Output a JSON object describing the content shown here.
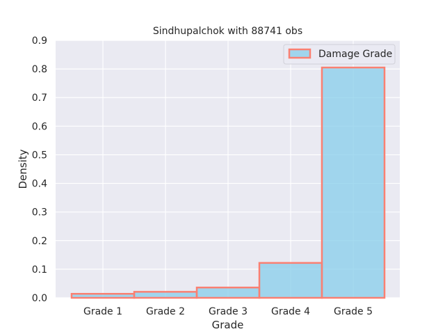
{
  "chart_data": {
    "type": "bar",
    "title": "Sindhupalchok with 88741 obs",
    "xlabel": "Grade",
    "ylabel": "Density",
    "categories": [
      "Grade 1",
      "Grade 2",
      "Grade 3",
      "Grade 4",
      "Grade 5"
    ],
    "series": [
      {
        "name": "Damage Grade",
        "values": [
          0.014,
          0.021,
          0.036,
          0.122,
          0.805
        ]
      }
    ],
    "ylim": [
      0,
      0.9
    ],
    "yticks": [
      "0.0",
      "0.1",
      "0.2",
      "0.3",
      "0.4",
      "0.5",
      "0.6",
      "0.7",
      "0.8",
      "0.9"
    ],
    "grid": true,
    "legend_position": "top-right",
    "colors": {
      "background": "#eaeaf2",
      "grid": "#ffffff",
      "bar_fill": "#87ceeb",
      "bar_edge": "#fa8072"
    }
  }
}
